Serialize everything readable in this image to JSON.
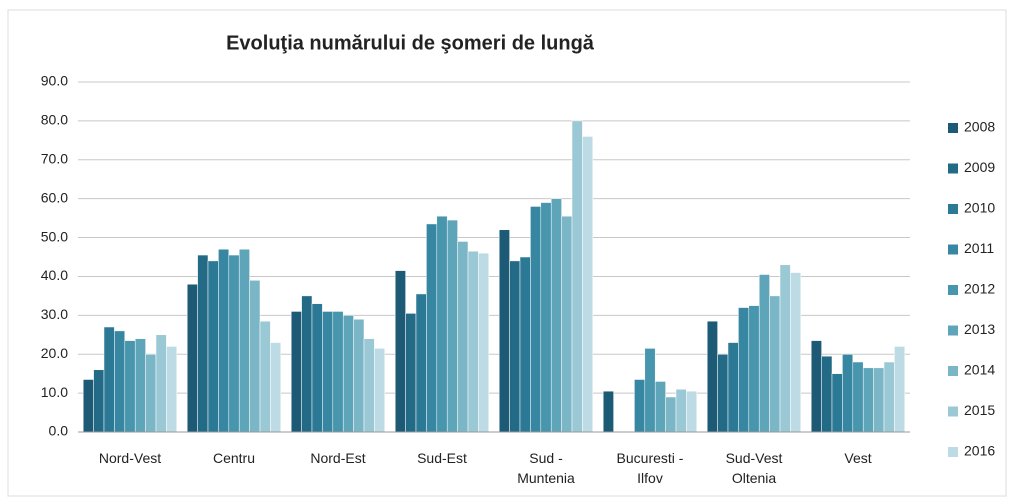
{
  "chart_data": {
    "type": "bar",
    "title": "Evoluţia numărului de şomeri de lungă",
    "categories": [
      "Nord-Vest",
      "Centru",
      "Nord-Est",
      "Sud-Est",
      "Sud - Muntenia",
      "Bucuresti - Ilfov",
      "Sud-Vest Oltenia",
      "Vest"
    ],
    "series": [
      {
        "name": "2008",
        "color": "#1d5a75",
        "values": [
          13.5,
          38,
          31,
          41.5,
          52,
          10.5,
          28.5,
          23.5
        ]
      },
      {
        "name": "2009",
        "color": "#236a86",
        "values": [
          16,
          45.5,
          35,
          30.5,
          44,
          0,
          20,
          19.5
        ]
      },
      {
        "name": "2010",
        "color": "#2b7995",
        "values": [
          27,
          44,
          33,
          35.5,
          45,
          0,
          23,
          15
        ]
      },
      {
        "name": "2011",
        "color": "#3787a2",
        "values": [
          26,
          47,
          31,
          53.5,
          58,
          13.5,
          32,
          20
        ]
      },
      {
        "name": "2012",
        "color": "#4895ae",
        "values": [
          23.5,
          45.5,
          31,
          55.5,
          59,
          21.5,
          32.5,
          18
        ]
      },
      {
        "name": "2013",
        "color": "#5fa5ba",
        "values": [
          24,
          47,
          30,
          54.5,
          60,
          13,
          40.5,
          16.5
        ]
      },
      {
        "name": "2014",
        "color": "#7bb6c7",
        "values": [
          20,
          39,
          29,
          49,
          55.5,
          9,
          35,
          16.5
        ]
      },
      {
        "name": "2015",
        "color": "#9bc8d5",
        "values": [
          25,
          28.5,
          24,
          46.5,
          80,
          11,
          43,
          18
        ]
      },
      {
        "name": "2016",
        "color": "#bcdbe4",
        "values": [
          22,
          23,
          21.5,
          46,
          76,
          10.5,
          41,
          22
        ]
      }
    ],
    "ylim": [
      0,
      90
    ],
    "yticks": [
      {
        "value": 0,
        "label": "0.0"
      },
      {
        "value": 10,
        "label": "10.0"
      },
      {
        "value": 20,
        "label": "20.0"
      },
      {
        "value": 30,
        "label": "30.0"
      },
      {
        "value": 40,
        "label": "40.0"
      },
      {
        "value": 50,
        "label": "50.0"
      },
      {
        "value": 60,
        "label": "60.0"
      },
      {
        "value": 70,
        "label": "70.0"
      },
      {
        "value": 80,
        "label": "80.0"
      },
      {
        "value": 90,
        "label": "90.0"
      }
    ],
    "grid": true,
    "legend": "right"
  }
}
